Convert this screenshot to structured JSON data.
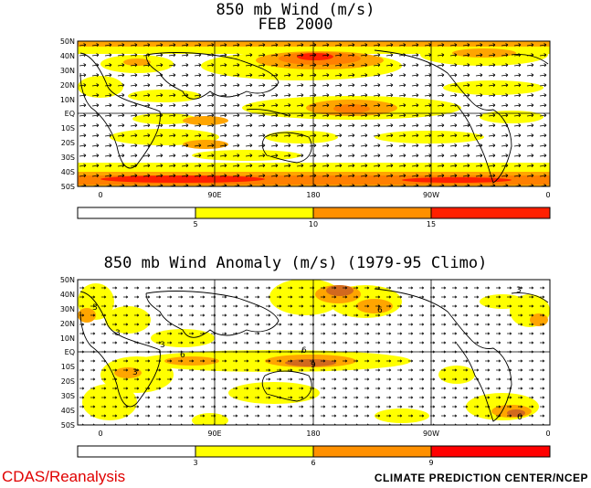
{
  "panel_top": {
    "title_line1": "850 mb Wind (m/s)",
    "title_line2": "FEB 2000",
    "lat_labels": [
      "50N",
      "40N",
      "30N",
      "20N",
      "10N",
      "EQ",
      "10S",
      "20S",
      "30S",
      "40S",
      "50S"
    ],
    "lon_labels": [
      "0",
      "90E",
      "180",
      "90W",
      "0"
    ],
    "colorbar": {
      "ticks": [
        "5",
        "10",
        "15"
      ],
      "colors": [
        "#ffffff",
        "#ffff00",
        "#ffa500",
        "#ff8000",
        "#ff2000"
      ]
    }
  },
  "panel_bottom": {
    "title": "850 mb Wind Anomaly (m/s) (1979-95 Climo)",
    "lat_labels": [
      "50N",
      "40N",
      "30N",
      "20N",
      "10N",
      "EQ",
      "10S",
      "20S",
      "30S",
      "40S",
      "50S"
    ],
    "lon_labels": [
      "0",
      "90E",
      "180",
      "90W",
      "0"
    ],
    "contour_labels": [
      "3",
      "3",
      "3",
      "3",
      "6",
      "6",
      "9",
      "6",
      "3",
      "6"
    ],
    "colorbar": {
      "ticks": [
        "3",
        "6",
        "9"
      ],
      "colors": [
        "#ffffff",
        "#ffff00",
        "#ffa500",
        "#d2691e",
        "#ff0000"
      ]
    }
  },
  "footer": {
    "left": "CDAS/Reanalysis",
    "right": "CLIMATE PREDICTION CENTER/NCEP"
  },
  "colors": {
    "yellow": "#ffff00",
    "orange": "#ffa500",
    "dark_orange": "#ff8000",
    "red": "#ff2000",
    "brown": "#d2691e",
    "credit_red": "#e00000"
  }
}
